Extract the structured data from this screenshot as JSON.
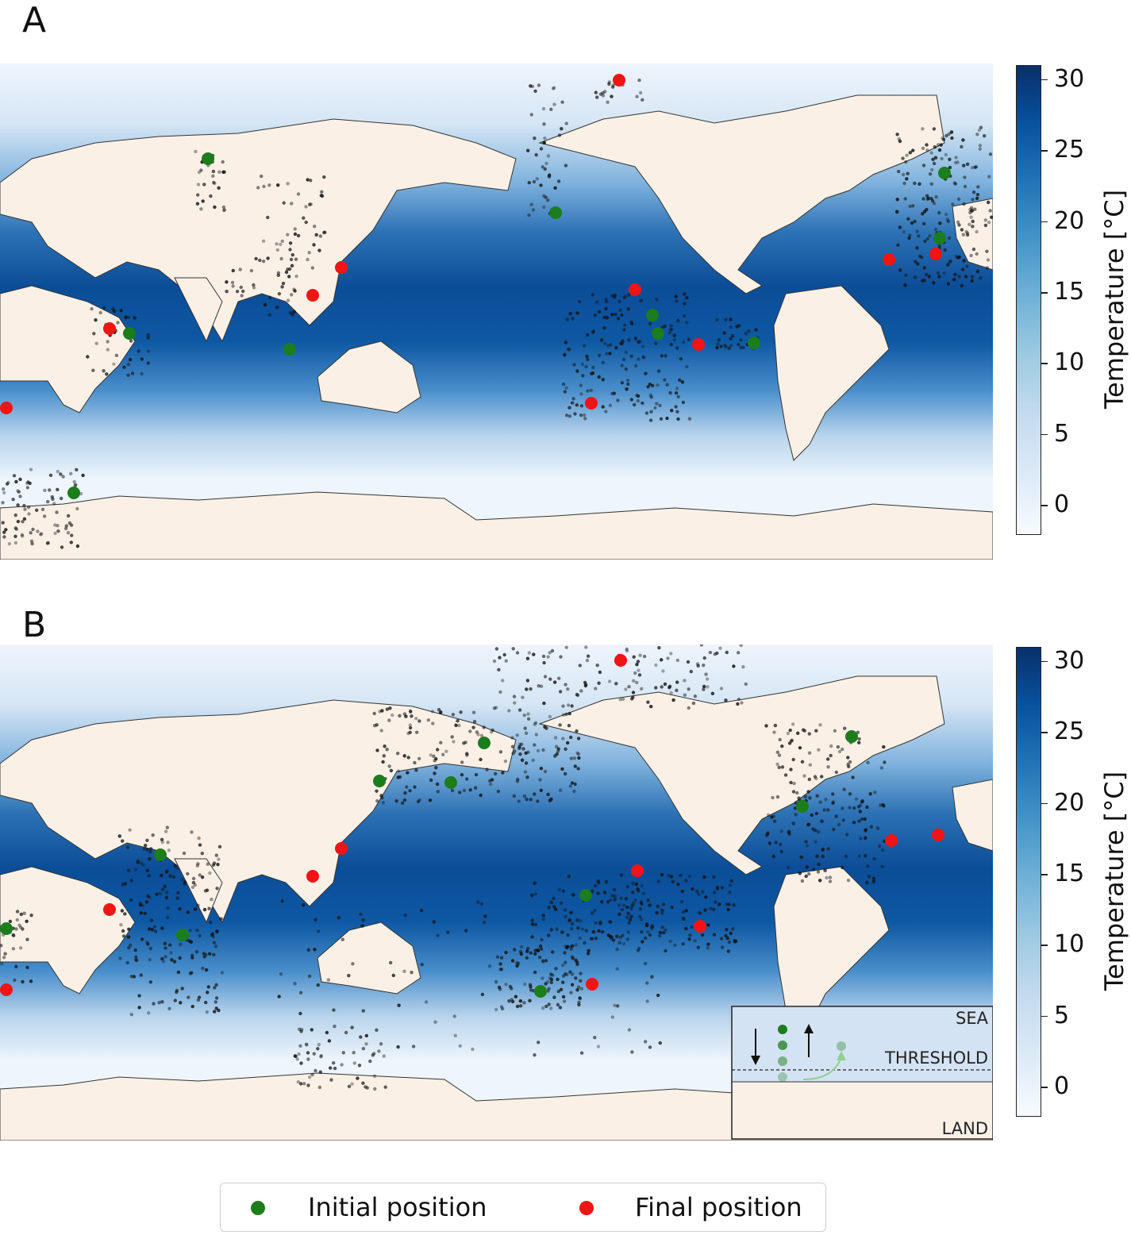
{
  "panels": [
    {
      "label": "A"
    },
    {
      "label": "B"
    }
  ],
  "colorbar": {
    "title": "Temperature [°C]",
    "ticks": [
      "30",
      "25",
      "20",
      "15",
      "10",
      "5",
      "0"
    ],
    "range": [
      -2,
      31
    ],
    "colormap": "Blues"
  },
  "legend": {
    "initial_label": "Initial position",
    "final_label": "Final position",
    "initial_color": "#1b7d1b",
    "final_color": "#f01414"
  },
  "inset": {
    "sea_label": "SEA",
    "threshold_label": "THRESHOLD",
    "land_label": "LAND"
  },
  "colors": {
    "land": "#faf0e6",
    "ocean_warm": "#0b4d97",
    "ocean_cold": "#eef5fc"
  }
}
